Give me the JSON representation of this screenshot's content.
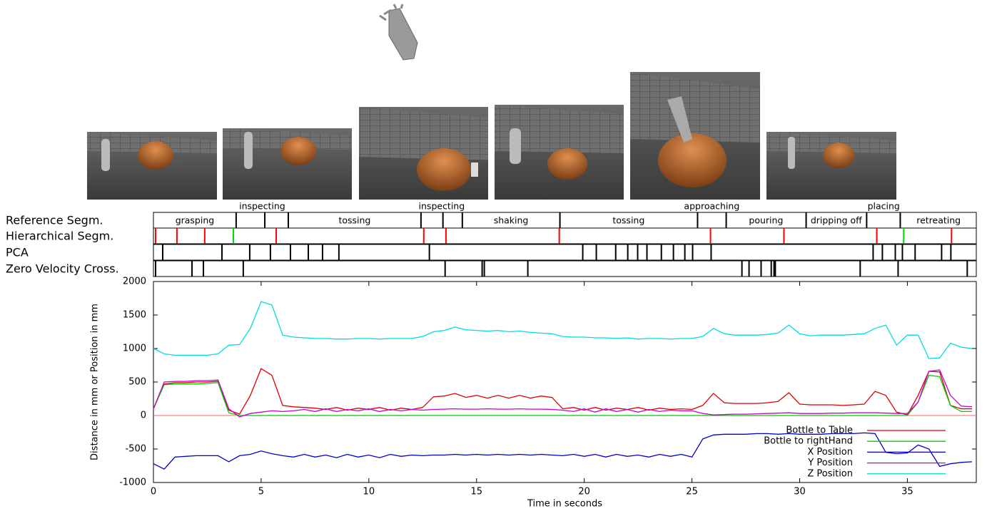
{
  "chart_data": [
    {
      "type": "segmentation",
      "xlim": [
        0,
        38.2
      ],
      "rows": [
        {
          "label": "Reference Segm.",
          "color": "#000000",
          "boundaries": [
            3.84,
            5.17,
            6.26,
            12.42,
            13.44,
            14.34,
            18.87,
            25.26,
            26.59,
            30.3,
            33.11,
            34.67
          ],
          "labels": [
            {
              "text": "grasping",
              "at": 1.92,
              "position": "inside"
            },
            {
              "text": "inspecting",
              "at": 5.05,
              "position": "above"
            },
            {
              "text": "tossing",
              "at": 9.34,
              "position": "inside"
            },
            {
              "text": "inspecting",
              "at": 13.38,
              "position": "above"
            },
            {
              "text": "shaking",
              "at": 16.6,
              "position": "inside"
            },
            {
              "text": "tossing",
              "at": 22.06,
              "position": "inside"
            },
            {
              "text": "approaching",
              "at": 25.92,
              "position": "above"
            },
            {
              "text": "pouring",
              "at": 28.44,
              "position": "inside"
            },
            {
              "text": "dripping off",
              "at": 31.7,
              "position": "inside"
            },
            {
              "text": "placing",
              "at": 33.9,
              "position": "above"
            },
            {
              "text": "retreating",
              "at": 36.45,
              "position": "inside"
            }
          ]
        },
        {
          "label": "Hierarchical Segm.",
          "boundaries": [
            0.1,
            1.09,
            2.38,
            3.71,
            5.7,
            12.55,
            13.58,
            18.84,
            25.86,
            29.27,
            33.58,
            34.83,
            37.05
          ],
          "colors": [
            "#ff0000",
            "#ff0000",
            "#ff0000",
            "#00dd00",
            "#ff0000",
            "#ff0000",
            "#ff0000",
            "#ff0000",
            "#ff0000",
            "#ff0000",
            "#ff0000",
            "#00dd00",
            "#ff0000"
          ]
        },
        {
          "label": "PCA",
          "color": "#000000",
          "boundaries": [
            0.43,
            3.18,
            4.47,
            5.43,
            6.36,
            7.19,
            7.85,
            8.61,
            12.81,
            19.93,
            20.56,
            21.46,
            22.02,
            22.48,
            22.91,
            23.58,
            24.14,
            24.67,
            25.03,
            25.89,
            33.41,
            33.84,
            34.44,
            34.77,
            35.36,
            36.59,
            37.02
          ]
        },
        {
          "label": "Zero Velocity Cross.",
          "color": "#000000",
          "boundaries": [
            0.1,
            1.79,
            2.32,
            4.17,
            13.54,
            15.26,
            15.36,
            17.38,
            27.32,
            27.65,
            28.21,
            28.68,
            28.81,
            28.87,
            32.81,
            34.57,
            37.78
          ]
        }
      ]
    },
    {
      "type": "line",
      "xlabel": "Time in seconds",
      "ylabel": "Distance in mm or Position in mm",
      "xlim": [
        0,
        38.2
      ],
      "ylim": [
        -1000,
        2000
      ],
      "xticks": [
        0,
        5,
        10,
        15,
        20,
        25,
        30,
        35
      ],
      "yticks": [
        -1000,
        -500,
        0,
        500,
        1000,
        1500,
        2000
      ],
      "legend": "lower right",
      "zero_line": {
        "value": 0,
        "color": "#ff6060"
      },
      "x": [
        0,
        0.5,
        1,
        1.5,
        2,
        2.5,
        3,
        3.5,
        4,
        4.5,
        5,
        5.5,
        6,
        6.5,
        7,
        7.5,
        8,
        8.5,
        9,
        9.5,
        10,
        10.5,
        11,
        11.5,
        12,
        12.5,
        13,
        13.5,
        14,
        14.5,
        15,
        15.5,
        16,
        16.5,
        17,
        17.5,
        18,
        18.5,
        19,
        19.5,
        20,
        20.5,
        21,
        21.5,
        22,
        22.5,
        23,
        23.5,
        24,
        24.5,
        25,
        25.5,
        26,
        26.5,
        27,
        27.5,
        28,
        28.5,
        29,
        29.5,
        30,
        30.5,
        31,
        31.5,
        32,
        32.5,
        33,
        33.5,
        34,
        34.5,
        35,
        35.5,
        36,
        36.5,
        37,
        37.5,
        38
      ],
      "series": [
        {
          "name": "Bottle to Table",
          "color": "#e00000",
          "values": [
            100,
            470,
            490,
            490,
            500,
            500,
            510,
            80,
            20,
            300,
            700,
            600,
            150,
            130,
            120,
            110,
            90,
            120,
            80,
            110,
            90,
            120,
            80,
            110,
            90,
            120,
            280,
            290,
            330,
            270,
            300,
            260,
            300,
            260,
            300,
            260,
            290,
            270,
            100,
            120,
            80,
            120,
            80,
            110,
            90,
            120,
            80,
            110,
            90,
            100,
            90,
            150,
            330,
            190,
            180,
            180,
            180,
            190,
            210,
            340,
            170,
            160,
            160,
            160,
            150,
            160,
            170,
            360,
            300,
            50,
            10,
            300,
            660,
            650,
            150,
            100,
            100
          ]
        },
        {
          "name": "Bottle to rightHand",
          "color": "#00cc00",
          "values": [
            100,
            460,
            470,
            470,
            470,
            480,
            490,
            40,
            0,
            0,
            0,
            0,
            0,
            0,
            0,
            0,
            0,
            0,
            0,
            0,
            0,
            0,
            0,
            0,
            0,
            0,
            0,
            0,
            0,
            0,
            0,
            0,
            0,
            0,
            0,
            0,
            0,
            0,
            0,
            0,
            0,
            0,
            0,
            0,
            0,
            0,
            0,
            0,
            0,
            0,
            0,
            0,
            0,
            0,
            0,
            0,
            0,
            0,
            0,
            0,
            0,
            0,
            0,
            0,
            0,
            0,
            0,
            0,
            0,
            0,
            0,
            200,
            600,
            580,
            150,
            60,
            60
          ]
        },
        {
          "name": "X Position",
          "color": "#0000cc",
          "values": [
            -720,
            -800,
            -620,
            -610,
            -600,
            -600,
            -600,
            -690,
            -600,
            -580,
            -530,
            -570,
            -600,
            -620,
            -580,
            -620,
            -590,
            -630,
            -580,
            -620,
            -590,
            -630,
            -580,
            -610,
            -590,
            -600,
            -590,
            -590,
            -580,
            -590,
            -580,
            -590,
            -580,
            -590,
            -580,
            -590,
            -580,
            -590,
            -600,
            -580,
            -610,
            -580,
            -620,
            -580,
            -610,
            -590,
            -620,
            -580,
            -610,
            -580,
            -620,
            -350,
            -290,
            -280,
            -280,
            -280,
            -270,
            -270,
            -280,
            -270,
            -280,
            -280,
            -280,
            -270,
            -270,
            -270,
            -260,
            -270,
            -550,
            -570,
            -560,
            -440,
            -500,
            -760,
            -720,
            -700,
            -690
          ]
        },
        {
          "name": "Y Position",
          "color": "#cc00cc",
          "values": [
            100,
            500,
            510,
            510,
            520,
            520,
            530,
            100,
            -20,
            30,
            50,
            70,
            60,
            70,
            90,
            60,
            100,
            60,
            90,
            70,
            100,
            60,
            90,
            70,
            90,
            80,
            90,
            95,
            100,
            95,
            95,
            100,
            95,
            95,
            100,
            95,
            95,
            90,
            80,
            60,
            100,
            50,
            100,
            60,
            90,
            50,
            90,
            60,
            80,
            70,
            70,
            30,
            10,
            15,
            20,
            20,
            25,
            30,
            35,
            40,
            30,
            30,
            30,
            35,
            35,
            40,
            40,
            40,
            35,
            30,
            30,
            200,
            660,
            680,
            300,
            140,
            130
          ]
        },
        {
          "name": "Z Position",
          "color": "#00dddd",
          "values": [
            1000,
            920,
            900,
            900,
            900,
            900,
            920,
            1050,
            1060,
            1300,
            1700,
            1650,
            1200,
            1170,
            1160,
            1150,
            1150,
            1140,
            1140,
            1150,
            1150,
            1140,
            1150,
            1150,
            1150,
            1180,
            1250,
            1270,
            1320,
            1280,
            1270,
            1260,
            1270,
            1250,
            1260,
            1240,
            1230,
            1220,
            1180,
            1170,
            1170,
            1160,
            1160,
            1150,
            1160,
            1140,
            1150,
            1150,
            1140,
            1150,
            1150,
            1180,
            1300,
            1220,
            1200,
            1200,
            1200,
            1210,
            1230,
            1350,
            1220,
            1190,
            1200,
            1200,
            1200,
            1210,
            1220,
            1300,
            1350,
            1050,
            1200,
            1200,
            850,
            860,
            1080,
            1020,
            1000
          ]
        }
      ]
    }
  ]
}
